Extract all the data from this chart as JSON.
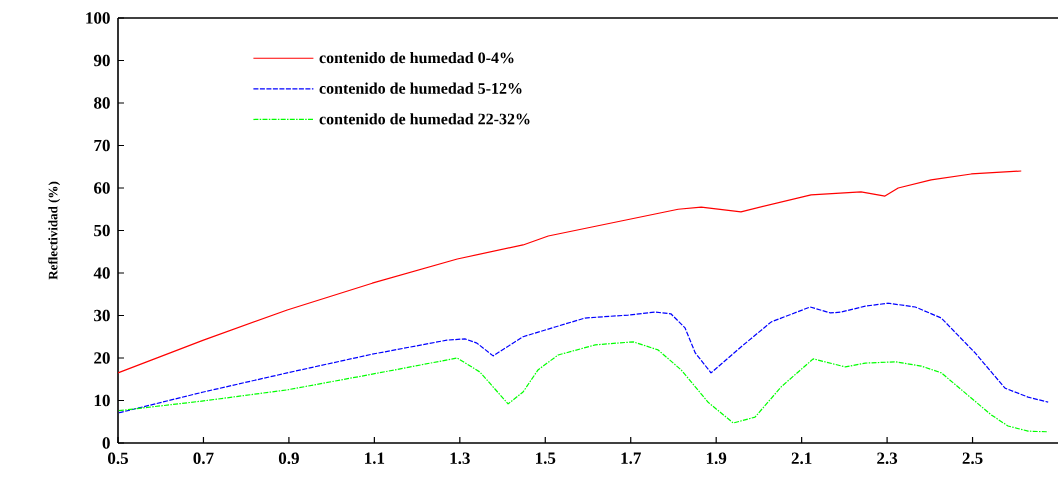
{
  "chart_data": {
    "type": "line",
    "ylabel": "Reflectividad (%)",
    "xlim": [
      0.5,
      2.7
    ],
    "ylim": [
      0,
      100
    ],
    "xticks": [
      0.5,
      0.7,
      0.9,
      1.1,
      1.3,
      1.5,
      1.7,
      1.9,
      2.1,
      2.3,
      2.5
    ],
    "yticks": [
      0,
      10,
      20,
      30,
      40,
      50,
      60,
      70,
      80,
      90,
      100
    ],
    "grid": false,
    "legend": "top left",
    "series": [
      {
        "name": "contenido de humedad 0-4%",
        "color": "#ff0000",
        "line_style": "solid",
        "x": [
          0.5,
          0.7,
          0.896,
          1.095,
          1.294,
          1.448,
          1.507,
          1.811,
          1.865,
          1.958,
          2.122,
          2.239,
          2.295,
          2.326,
          2.403,
          2.497,
          2.614
        ],
        "values": [
          16.5,
          24.2,
          31.3,
          37.6,
          43.3,
          46.6,
          48.7,
          55.0,
          55.5,
          54.4,
          58.4,
          59.1,
          58.1,
          60.0,
          61.9,
          63.3,
          64.0
        ]
      },
      {
        "name": "contenido de humedad 5-12%",
        "color": "#0000ff",
        "line_style": "dashed",
        "x": [
          0.502,
          0.7,
          0.896,
          1.095,
          1.27,
          1.312,
          1.34,
          1.378,
          1.448,
          1.523,
          1.593,
          1.694,
          1.757,
          1.794,
          1.827,
          1.851,
          1.888,
          1.958,
          2.029,
          2.12,
          2.167,
          2.192,
          2.249,
          2.302,
          2.366,
          2.427,
          2.506,
          2.576,
          2.63,
          2.677
        ],
        "values": [
          7.1,
          12.0,
          16.5,
          20.9,
          24.2,
          24.5,
          23.5,
          20.5,
          25.0,
          27.3,
          29.4,
          30.1,
          30.8,
          30.4,
          27.1,
          21.2,
          16.5,
          22.6,
          28.5,
          32.0,
          30.6,
          30.8,
          32.2,
          32.9,
          32.0,
          29.4,
          21.2,
          12.9,
          10.8,
          9.6
        ]
      },
      {
        "name": "contenido de humedad 22-32%",
        "color": "#00ff00",
        "line_style": "dashdot",
        "x": [
          0.502,
          0.7,
          0.896,
          1.095,
          1.294,
          1.347,
          1.413,
          1.448,
          1.483,
          1.53,
          1.617,
          1.706,
          1.764,
          1.818,
          1.881,
          1.94,
          1.991,
          2.052,
          2.127,
          2.202,
          2.249,
          2.319,
          2.38,
          2.427,
          2.544,
          2.583,
          2.63,
          2.677
        ],
        "values": [
          7.6,
          9.9,
          12.5,
          16.2,
          20.0,
          16.7,
          9.2,
          12.0,
          17.2,
          20.7,
          23.1,
          23.8,
          21.9,
          17.2,
          9.6,
          4.7,
          6.1,
          13.2,
          19.8,
          17.9,
          18.8,
          19.1,
          18.1,
          16.5,
          6.6,
          4.0,
          2.8,
          2.6
        ]
      }
    ]
  }
}
